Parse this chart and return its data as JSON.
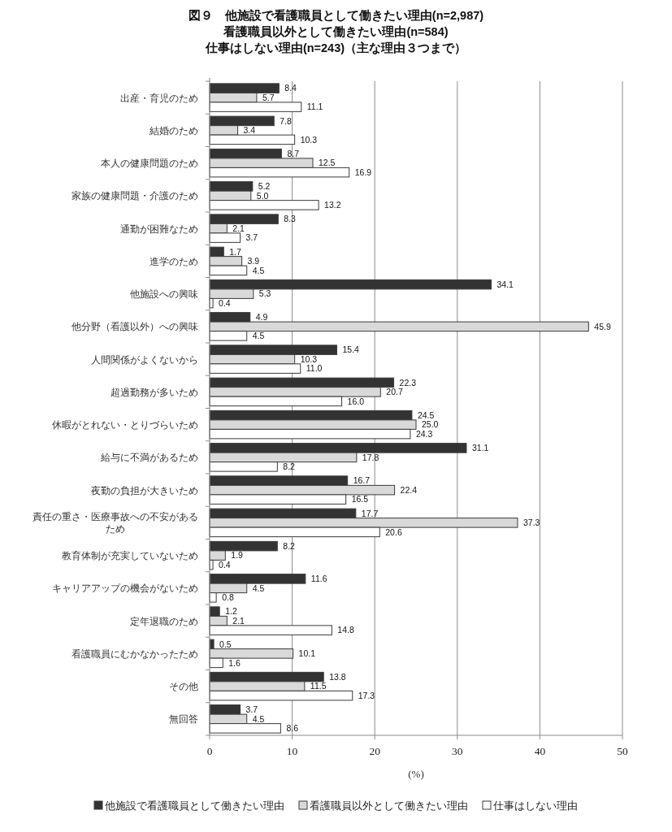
{
  "chart_data": {
    "type": "bar",
    "orientation": "horizontal",
    "title": "図９　他施設で看護職員として働きたい理由(n=2,987)\n看護職員以外として働きたい理由(n=584)\n仕事はしない理由(n=243)（主な理由３つまで）",
    "xlabel": "(%)",
    "categories": [
      "出産・育児のため",
      "結婚のため",
      "本人の健康問題のため",
      "家族の健康問題・介護のため",
      "通勤が困難なため",
      "進学のため",
      "他施設への興味",
      "他分野（看護以外）への興味",
      "人間関係がよくないから",
      "超過勤務が多いため",
      "休暇がとれない・とりづらいため",
      "給与に不満があるため",
      "夜勤の負担が大きいため",
      "責任の重さ・医療事故への不安があるため",
      "教育体制が充実していないため",
      "キャリアアップの機会がないため",
      "定年退職のため",
      "看護職員にむかなかったため",
      "その他",
      "無回答"
    ],
    "series": [
      {
        "name": "他施設で看護職員として働きたい理由",
        "color": "#333333",
        "values": [
          8.4,
          7.8,
          8.7,
          5.2,
          8.3,
          1.7,
          34.1,
          4.9,
          15.4,
          22.3,
          24.5,
          31.1,
          16.7,
          17.7,
          8.2,
          11.6,
          1.2,
          0.5,
          13.8,
          3.7
        ],
        "value_labels": [
          "8.4",
          "7.8",
          "8.7",
          "5.2",
          "8.3",
          "1.7",
          "34.1",
          "4.9",
          "15.4",
          "22.3",
          "24.5",
          "31.1",
          "16.7",
          "17.7",
          "8.2",
          "11.6",
          "1.2",
          "0.5",
          "13.8",
          "3.7"
        ]
      },
      {
        "name": "看護職員以外として働きたい理由",
        "color": "#d9d9d9",
        "values": [
          5.7,
          3.4,
          12.5,
          5.0,
          2.1,
          3.9,
          5.3,
          45.9,
          10.3,
          20.7,
          25.0,
          17.8,
          22.4,
          37.3,
          1.9,
          4.5,
          2.1,
          10.1,
          11.5,
          4.5
        ],
        "value_labels": [
          "5.7",
          "3.4",
          "12.5",
          "5.0",
          "2.1",
          "3.9",
          "5.3",
          "45.9",
          "10.3",
          "20.7",
          "25.0",
          "17.8",
          "22.4",
          "37.3",
          "1.9",
          "4.5",
          "2.1",
          "10.1",
          "11.5",
          "4.5"
        ]
      },
      {
        "name": "仕事はしない理由",
        "color": "#ffffff",
        "values": [
          11.1,
          10.3,
          16.9,
          13.2,
          3.7,
          4.5,
          0.4,
          4.5,
          11.0,
          16.0,
          24.3,
          8.2,
          16.5,
          20.6,
          0.4,
          0.8,
          14.8,
          1.6,
          17.3,
          8.6
        ],
        "value_labels": [
          "11.1",
          "10.3",
          "16.9",
          "13.2",
          "3.7",
          "4.5",
          "0.4",
          "4.5",
          "11.0",
          "16.0",
          "24.3",
          "8.2",
          "16.5",
          "20.6",
          "0.4",
          "0.8",
          "14.8",
          "1.6",
          "17.3",
          "8.6"
        ]
      }
    ],
    "xlim": [
      0,
      50
    ],
    "xticks": [
      0,
      10,
      20,
      30,
      40,
      50
    ],
    "grid": "x",
    "legend": "bottom"
  }
}
